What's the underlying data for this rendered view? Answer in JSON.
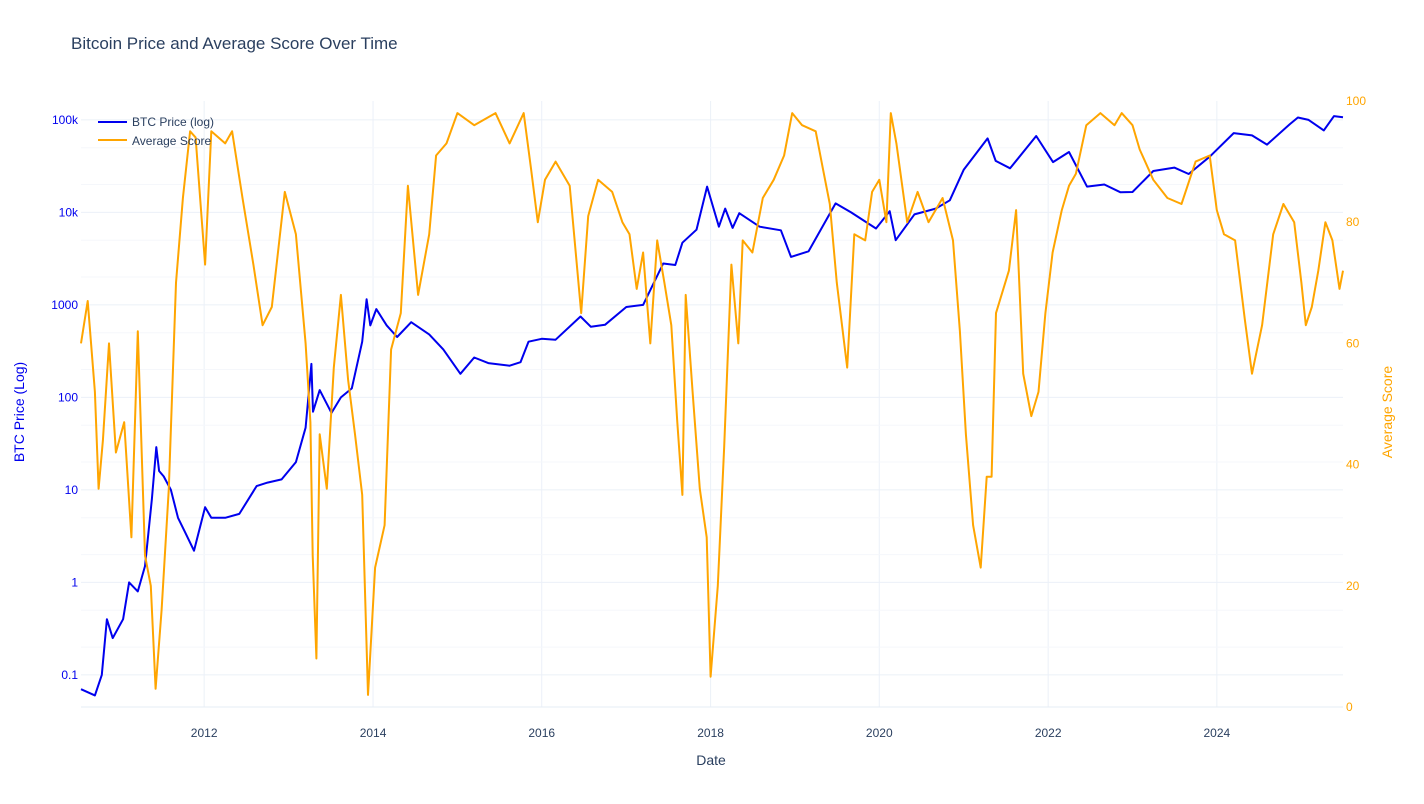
{
  "chart_data": {
    "type": "line",
    "title": "Bitcoin Price and Average Score Over Time",
    "xlabel": "Date",
    "ylabel_left": "BTC Price (Log)",
    "ylabel_right": "Average Score",
    "x_ticks": [
      "2012",
      "2014",
      "2016",
      "2018",
      "2020",
      "2022",
      "2024"
    ],
    "x_range": [
      "2010-07-17",
      "2025-06-30"
    ],
    "y_left_scale": "log",
    "y_left_range": [
      0.045,
      160000
    ],
    "y_left_ticks": [
      {
        "value": 0.1,
        "label": "0.1"
      },
      {
        "value": 1,
        "label": "1"
      },
      {
        "value": 10,
        "label": "10"
      },
      {
        "value": 100,
        "label": "100"
      },
      {
        "value": 1000,
        "label": "1000"
      },
      {
        "value": 10000,
        "label": "10k"
      },
      {
        "value": 100000,
        "label": "100k"
      }
    ],
    "y_right_range": [
      0,
      100
    ],
    "y_right_ticks": [
      0,
      20,
      40,
      60,
      80,
      100
    ],
    "grid": true,
    "legend_position": "top-left",
    "colors": {
      "btc": "#0000ee",
      "score": "#ffa500",
      "axis_text": "#2a3f5f",
      "grid": "#ebf0f8"
    },
    "series": [
      {
        "name": "BTC Price (log)",
        "axis": "left",
        "points": [
          [
            "2010-07-17",
            0.07
          ],
          [
            "2010-09-15",
            0.06
          ],
          [
            "2010-10-15",
            0.1
          ],
          [
            "2010-11-06",
            0.4
          ],
          [
            "2010-12-01",
            0.25
          ],
          [
            "2011-01-15",
            0.4
          ],
          [
            "2011-02-10",
            1.0
          ],
          [
            "2011-03-20",
            0.8
          ],
          [
            "2011-04-20",
            1.5
          ],
          [
            "2011-05-20",
            8
          ],
          [
            "2011-06-08",
            29
          ],
          [
            "2011-06-20",
            16
          ],
          [
            "2011-07-10",
            14
          ],
          [
            "2011-08-10",
            10
          ],
          [
            "2011-09-10",
            5
          ],
          [
            "2011-10-10",
            3.5
          ],
          [
            "2011-11-18",
            2.2
          ],
          [
            "2012-01-05",
            6.5
          ],
          [
            "2012-02-01",
            5
          ],
          [
            "2012-04-01",
            5
          ],
          [
            "2012-06-01",
            5.5
          ],
          [
            "2012-08-15",
            11
          ],
          [
            "2012-10-01",
            12
          ],
          [
            "2012-12-01",
            13
          ],
          [
            "2013-02-01",
            20
          ],
          [
            "2013-03-15",
            47
          ],
          [
            "2013-04-09",
            230
          ],
          [
            "2013-04-16",
            70
          ],
          [
            "2013-05-15",
            120
          ],
          [
            "2013-07-05",
            68
          ],
          [
            "2013-08-15",
            100
          ],
          [
            "2013-10-01",
            125
          ],
          [
            "2013-11-15",
            400
          ],
          [
            "2013-12-04",
            1150
          ],
          [
            "2013-12-20",
            600
          ],
          [
            "2014-01-15",
            900
          ],
          [
            "2014-03-01",
            600
          ],
          [
            "2014-04-15",
            450
          ],
          [
            "2014-06-15",
            650
          ],
          [
            "2014-09-01",
            480
          ],
          [
            "2014-11-01",
            330
          ],
          [
            "2015-01-14",
            180
          ],
          [
            "2015-03-15",
            270
          ],
          [
            "2015-05-15",
            235
          ],
          [
            "2015-08-15",
            220
          ],
          [
            "2015-10-01",
            240
          ],
          [
            "2015-11-05",
            400
          ],
          [
            "2016-01-01",
            430
          ],
          [
            "2016-03-01",
            420
          ],
          [
            "2016-06-17",
            750
          ],
          [
            "2016-08-01",
            580
          ],
          [
            "2016-10-01",
            610
          ],
          [
            "2017-01-01",
            950
          ],
          [
            "2017-03-15",
            1000
          ],
          [
            "2017-06-10",
            2800
          ],
          [
            "2017-08-01",
            2700
          ],
          [
            "2017-09-01",
            4700
          ],
          [
            "2017-11-01",
            6500
          ],
          [
            "2017-12-17",
            19000
          ],
          [
            "2018-02-06",
            7000
          ],
          [
            "2018-03-05",
            11000
          ],
          [
            "2018-04-06",
            6800
          ],
          [
            "2018-05-05",
            9800
          ],
          [
            "2018-08-01",
            7000
          ],
          [
            "2018-11-01",
            6400
          ],
          [
            "2018-12-15",
            3300
          ],
          [
            "2019-03-01",
            3800
          ],
          [
            "2019-06-26",
            12500
          ],
          [
            "2019-09-01",
            10000
          ],
          [
            "2019-12-18",
            6700
          ],
          [
            "2020-02-15",
            10300
          ],
          [
            "2020-03-12",
            5000
          ],
          [
            "2020-06-01",
            9500
          ],
          [
            "2020-09-01",
            11000
          ],
          [
            "2020-11-01",
            13500
          ],
          [
            "2021-01-01",
            29000
          ],
          [
            "2021-04-14",
            63000
          ],
          [
            "2021-05-19",
            36000
          ],
          [
            "2021-07-20",
            30000
          ],
          [
            "2021-11-10",
            67000
          ],
          [
            "2022-01-22",
            35000
          ],
          [
            "2022-04-01",
            45000
          ],
          [
            "2022-06-18",
            19000
          ],
          [
            "2022-09-01",
            20000
          ],
          [
            "2022-11-10",
            16500
          ],
          [
            "2023-01-01",
            16600
          ],
          [
            "2023-04-01",
            28000
          ],
          [
            "2023-07-01",
            30500
          ],
          [
            "2023-09-01",
            26000
          ],
          [
            "2023-12-01",
            40000
          ],
          [
            "2024-03-14",
            72000
          ],
          [
            "2024-06-01",
            68000
          ],
          [
            "2024-08-05",
            54000
          ],
          [
            "2024-11-12",
            90000
          ],
          [
            "2024-12-17",
            106000
          ],
          [
            "2025-02-01",
            100000
          ],
          [
            "2025-04-08",
            77000
          ],
          [
            "2025-05-22",
            110000
          ],
          [
            "2025-06-30",
            107000
          ]
        ]
      },
      {
        "name": "Average Score",
        "axis": "right",
        "points": [
          [
            "2010-07-17",
            60
          ],
          [
            "2010-08-15",
            67
          ],
          [
            "2010-09-15",
            52
          ],
          [
            "2010-10-01",
            36
          ],
          [
            "2010-10-20",
            44
          ],
          [
            "2010-11-15",
            60
          ],
          [
            "2010-12-15",
            42
          ],
          [
            "2011-01-20",
            47
          ],
          [
            "2011-02-20",
            28
          ],
          [
            "2011-03-20",
            62
          ],
          [
            "2011-04-20",
            25
          ],
          [
            "2011-05-15",
            20
          ],
          [
            "2011-06-05",
            3
          ],
          [
            "2011-07-01",
            16
          ],
          [
            "2011-08-01",
            36
          ],
          [
            "2011-09-01",
            70
          ],
          [
            "2011-10-01",
            84
          ],
          [
            "2011-11-01",
            95
          ],
          [
            "2011-11-25",
            94
          ],
          [
            "2012-01-05",
            73
          ],
          [
            "2012-02-01",
            95
          ],
          [
            "2012-04-01",
            93
          ],
          [
            "2012-05-01",
            95
          ],
          [
            "2012-06-15",
            84
          ],
          [
            "2012-08-01",
            73
          ],
          [
            "2012-09-10",
            63
          ],
          [
            "2012-10-20",
            66
          ],
          [
            "2012-12-15",
            85
          ],
          [
            "2013-02-01",
            78
          ],
          [
            "2013-03-15",
            60
          ],
          [
            "2013-04-05",
            47
          ],
          [
            "2013-04-15",
            25
          ],
          [
            "2013-05-01",
            8
          ],
          [
            "2013-05-15",
            45
          ],
          [
            "2013-06-15",
            36
          ],
          [
            "2013-07-15",
            56
          ],
          [
            "2013-08-15",
            68
          ],
          [
            "2013-09-15",
            54
          ],
          [
            "2013-10-15",
            45
          ],
          [
            "2013-11-15",
            35
          ],
          [
            "2013-12-10",
            2
          ],
          [
            "2014-01-10",
            23
          ],
          [
            "2014-02-20",
            30
          ],
          [
            "2014-03-20",
            59
          ],
          [
            "2014-05-01",
            65
          ],
          [
            "2014-06-01",
            86
          ],
          [
            "2014-07-15",
            68
          ],
          [
            "2014-09-01",
            78
          ],
          [
            "2014-10-01",
            91
          ],
          [
            "2014-11-15",
            93
          ],
          [
            "2015-01-01",
            98
          ],
          [
            "2015-03-15",
            96
          ],
          [
            "2015-06-15",
            98
          ],
          [
            "2015-08-15",
            93
          ],
          [
            "2015-10-15",
            98
          ],
          [
            "2015-11-15",
            89
          ],
          [
            "2015-12-15",
            80
          ],
          [
            "2016-01-15",
            87
          ],
          [
            "2016-03-01",
            90
          ],
          [
            "2016-05-01",
            86
          ],
          [
            "2016-06-20",
            65
          ],
          [
            "2016-07-20",
            81
          ],
          [
            "2016-09-01",
            87
          ],
          [
            "2016-11-01",
            85
          ],
          [
            "2016-12-15",
            80
          ],
          [
            "2017-01-15",
            78
          ],
          [
            "2017-02-15",
            69
          ],
          [
            "2017-03-15",
            75
          ],
          [
            "2017-04-15",
            60
          ],
          [
            "2017-05-15",
            77
          ],
          [
            "2017-06-15",
            70
          ],
          [
            "2017-07-15",
            63
          ],
          [
            "2017-08-10",
            47
          ],
          [
            "2017-09-01",
            35
          ],
          [
            "2017-09-15",
            68
          ],
          [
            "2017-10-15",
            52
          ],
          [
            "2017-11-15",
            36
          ],
          [
            "2017-12-15",
            28
          ],
          [
            "2018-01-01",
            5
          ],
          [
            "2018-02-01",
            20
          ],
          [
            "2018-03-01",
            43
          ],
          [
            "2018-04-01",
            73
          ],
          [
            "2018-05-01",
            60
          ],
          [
            "2018-05-20",
            77
          ],
          [
            "2018-07-01",
            75
          ],
          [
            "2018-08-15",
            84
          ],
          [
            "2018-10-01",
            87
          ],
          [
            "2018-11-15",
            91
          ],
          [
            "2018-12-20",
            98
          ],
          [
            "2019-02-01",
            96
          ],
          [
            "2019-04-01",
            95
          ],
          [
            "2019-05-01",
            89
          ],
          [
            "2019-06-01",
            83
          ],
          [
            "2019-07-01",
            70
          ],
          [
            "2019-08-15",
            56
          ],
          [
            "2019-09-15",
            78
          ],
          [
            "2019-11-01",
            77
          ],
          [
            "2019-12-01",
            85
          ],
          [
            "2020-01-01",
            87
          ],
          [
            "2020-02-01",
            80
          ],
          [
            "2020-02-20",
            98
          ],
          [
            "2020-03-15",
            93
          ],
          [
            "2020-05-01",
            80
          ],
          [
            "2020-06-15",
            85
          ],
          [
            "2020-08-01",
            80
          ],
          [
            "2020-10-01",
            84
          ],
          [
            "2020-11-15",
            77
          ],
          [
            "2020-12-15",
            62
          ],
          [
            "2021-01-10",
            45
          ],
          [
            "2021-02-10",
            30
          ],
          [
            "2021-03-15",
            23
          ],
          [
            "2021-04-10",
            38
          ],
          [
            "2021-05-01",
            38
          ],
          [
            "2021-05-20",
            65
          ],
          [
            "2021-07-15",
            72
          ],
          [
            "2021-08-15",
            82
          ],
          [
            "2021-09-15",
            55
          ],
          [
            "2021-10-20",
            48
          ],
          [
            "2021-11-20",
            52
          ],
          [
            "2021-12-20",
            65
          ],
          [
            "2022-01-20",
            75
          ],
          [
            "2022-03-01",
            82
          ],
          [
            "2022-04-01",
            86
          ],
          [
            "2022-05-01",
            88
          ],
          [
            "2022-06-15",
            96
          ],
          [
            "2022-08-15",
            98
          ],
          [
            "2022-10-15",
            96
          ],
          [
            "2022-11-15",
            98
          ],
          [
            "2023-01-01",
            96
          ],
          [
            "2023-02-01",
            92
          ],
          [
            "2023-04-01",
            87
          ],
          [
            "2023-06-01",
            84
          ],
          [
            "2023-08-01",
            83
          ],
          [
            "2023-10-01",
            90
          ],
          [
            "2023-12-01",
            91
          ],
          [
            "2024-01-01",
            82
          ],
          [
            "2024-02-01",
            78
          ],
          [
            "2024-03-20",
            77
          ],
          [
            "2024-05-01",
            64
          ],
          [
            "2024-06-01",
            55
          ],
          [
            "2024-07-15",
            63
          ],
          [
            "2024-09-01",
            78
          ],
          [
            "2024-10-15",
            83
          ],
          [
            "2024-12-01",
            80
          ],
          [
            "2025-01-01",
            70
          ],
          [
            "2025-01-20",
            63
          ],
          [
            "2025-02-15",
            66
          ],
          [
            "2025-03-15",
            72
          ],
          [
            "2025-04-15",
            80
          ],
          [
            "2025-05-15",
            77
          ],
          [
            "2025-06-15",
            69
          ],
          [
            "2025-06-30",
            72
          ]
        ]
      }
    ]
  }
}
